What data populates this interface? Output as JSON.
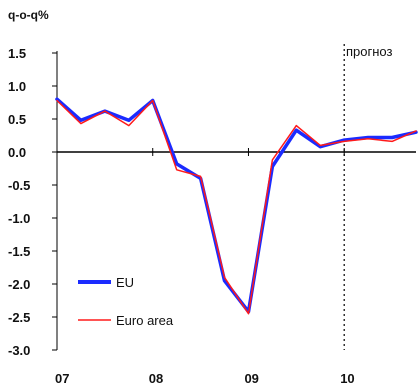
{
  "chart_data": {
    "type": "line",
    "unit_label": "q-o-q%",
    "annotation": "прогноз",
    "ylim": [
      -3.0,
      1.5
    ],
    "y_ticks": [
      "1.5",
      "1.0",
      "0.5",
      "0.0",
      "-0.5",
      "-1.0",
      "-1.5",
      "-2.0",
      "-2.5",
      "-3.0"
    ],
    "x_ticks": [
      "07",
      "08",
      "09",
      "10"
    ],
    "x_tick_positions": [
      2007,
      2008,
      2009,
      2010
    ],
    "xlim": [
      2007,
      2010.75
    ],
    "forecast_start": 2010.0,
    "grid": false,
    "legend_position": "bottom-left",
    "series": [
      {
        "name": "EU",
        "color": "#1b2bff",
        "x": [
          2007.0,
          2007.25,
          2007.5,
          2007.75,
          2008.0,
          2008.25,
          2008.5,
          2008.75,
          2009.0,
          2009.25,
          2009.5,
          2009.75,
          2010.0,
          2010.25,
          2010.5,
          2010.75
        ],
        "values": [
          0.8,
          0.48,
          0.62,
          0.48,
          0.78,
          -0.18,
          -0.4,
          -1.95,
          -2.42,
          -0.22,
          0.33,
          0.08,
          0.18,
          0.22,
          0.22,
          0.3
        ]
      },
      {
        "name": "Euro area",
        "color": "#ff1a1a",
        "x": [
          2007.0,
          2007.25,
          2007.5,
          2007.75,
          2008.0,
          2008.25,
          2008.5,
          2008.75,
          2009.0,
          2009.25,
          2009.5,
          2009.75,
          2010.0,
          2010.25,
          2010.5,
          2010.75
        ],
        "values": [
          0.78,
          0.43,
          0.62,
          0.4,
          0.78,
          -0.27,
          -0.37,
          -1.9,
          -2.45,
          -0.12,
          0.4,
          0.1,
          0.16,
          0.2,
          0.16,
          0.32
        ]
      }
    ]
  }
}
